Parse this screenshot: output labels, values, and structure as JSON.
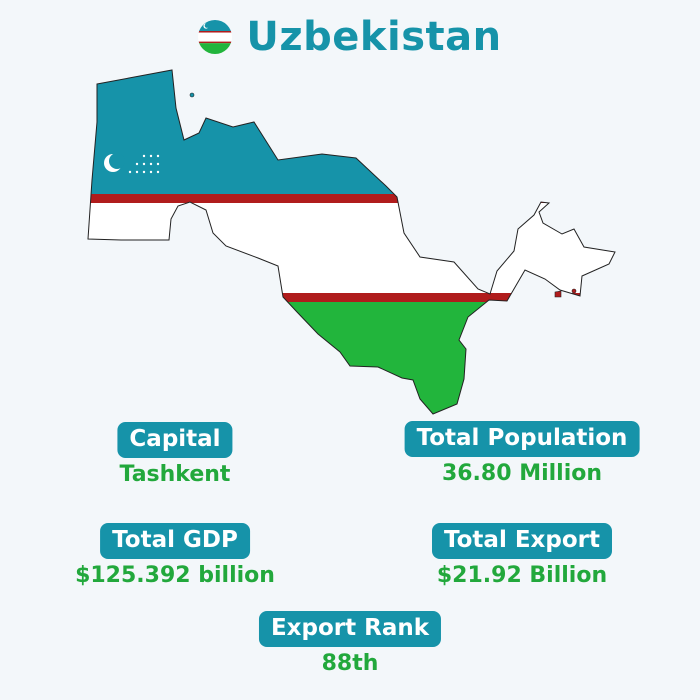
{
  "header": {
    "title": "Uzbekistan",
    "flag_icon": "uzbekistan-flag-icon"
  },
  "map": {
    "icon": "uzbekistan-map-flag-icon",
    "colors": {
      "blue": "#1693a9",
      "white": "#ffffff",
      "red": "#b01c1c",
      "green": "#22b53c"
    }
  },
  "stats": {
    "capital": {
      "label": "Capital",
      "value": "Tashkent"
    },
    "population": {
      "label": "Total Population",
      "value": "36.80 Million"
    },
    "gdp": {
      "label": "Total GDP",
      "value": "$125.392 billion"
    },
    "export": {
      "label": "Total Export",
      "value": "$21.92 Billion"
    },
    "rank": {
      "label": "Export Rank",
      "value": "88th"
    }
  },
  "colors": {
    "accent": "#1693a9",
    "value_green": "#22a83c",
    "background": "#f3f7fa"
  }
}
